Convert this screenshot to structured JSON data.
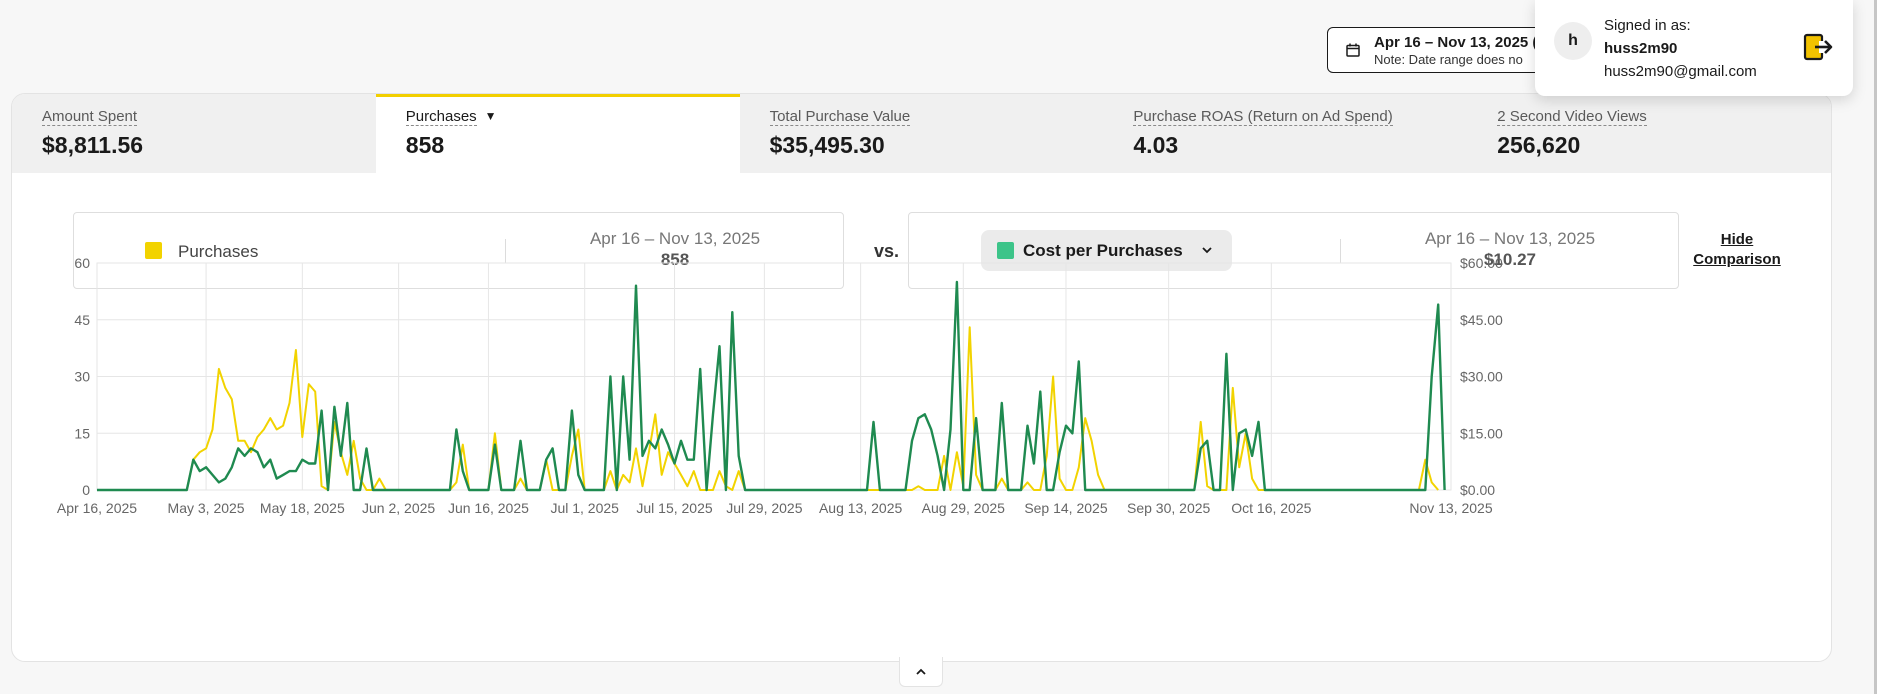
{
  "date_picker": {
    "range": "Apr 16 – Nov 13, 2025 (",
    "note": "Note: Date range does no"
  },
  "account": {
    "signed_in_label": "Signed in as:",
    "username": "huss2m90",
    "email": "huss2m90@gmail.com",
    "avatar_letter": "h"
  },
  "metrics": [
    {
      "label": "Amount Spent",
      "value": "$8,811.56"
    },
    {
      "label": "Purchases",
      "value": "858"
    },
    {
      "label": "Total Purchase Value",
      "value": "$35,495.30"
    },
    {
      "label": "Purchase ROAS (Return on Ad Spend)",
      "value": "4.03"
    },
    {
      "label": "2 Second Video Views",
      "value": "256,620"
    }
  ],
  "comparison": {
    "primary": {
      "label": "Purchases",
      "range": "Apr 16 – Nov 13, 2025",
      "value": "858",
      "color": "#f2d300"
    },
    "vs_label": "vs.",
    "secondary": {
      "label": "Cost per Purchases",
      "range": "Apr 16 – Nov 13, 2025",
      "value": "$10.27",
      "color": "#3cc489"
    },
    "hide_label": "Hide Comparison"
  },
  "chart_data": {
    "type": "line",
    "x_start": "2025-04-16",
    "x_end": "2025-11-13",
    "x_tick_labels": [
      "Apr 16, 2025",
      "May 3, 2025",
      "May 18, 2025",
      "Jun 2, 2025",
      "Jun 16, 2025",
      "Jul 1, 2025",
      "Jul 15, 2025",
      "Jul 29, 2025",
      "Aug 13, 2025",
      "Aug 29, 2025",
      "Sep 14, 2025",
      "Sep 30, 2025",
      "Oct 16, 2025",
      "Nov 13, 2025"
    ],
    "y_left": {
      "ticks": [
        "0",
        "15",
        "30",
        "45",
        "60"
      ],
      "range": [
        0,
        60
      ]
    },
    "y_right": {
      "ticks": [
        "$0.00",
        "$15.00",
        "$30.00",
        "$45.00",
        "$60.00"
      ],
      "range": [
        0,
        60
      ]
    },
    "series": [
      {
        "name": "Purchases",
        "axis": "left",
        "color": "#f2d300",
        "points": [
          [
            "2025-04-16",
            0
          ],
          [
            "2025-04-30",
            0
          ],
          [
            "2025-05-01",
            8
          ],
          [
            "2025-05-02",
            10
          ],
          [
            "2025-05-03",
            11
          ],
          [
            "2025-05-04",
            16
          ],
          [
            "2025-05-05",
            32
          ],
          [
            "2025-05-06",
            27
          ],
          [
            "2025-05-07",
            24
          ],
          [
            "2025-05-08",
            13
          ],
          [
            "2025-05-09",
            13
          ],
          [
            "2025-05-10",
            10
          ],
          [
            "2025-05-11",
            14
          ],
          [
            "2025-05-12",
            16
          ],
          [
            "2025-05-13",
            19
          ],
          [
            "2025-05-14",
            16
          ],
          [
            "2025-05-15",
            17
          ],
          [
            "2025-05-16",
            23
          ],
          [
            "2025-05-17",
            37
          ],
          [
            "2025-05-18",
            14
          ],
          [
            "2025-05-19",
            28
          ],
          [
            "2025-05-20",
            26
          ],
          [
            "2025-05-21",
            1
          ],
          [
            "2025-05-22",
            0
          ],
          [
            "2025-05-23",
            18
          ],
          [
            "2025-05-24",
            10
          ],
          [
            "2025-05-25",
            4
          ],
          [
            "2025-05-26",
            13
          ],
          [
            "2025-05-27",
            3
          ],
          [
            "2025-05-28",
            0
          ],
          [
            "2025-05-29",
            0
          ],
          [
            "2025-05-30",
            3
          ],
          [
            "2025-05-31",
            0
          ],
          [
            "2025-06-10",
            0
          ],
          [
            "2025-06-11",
            2
          ],
          [
            "2025-06-12",
            12
          ],
          [
            "2025-06-13",
            0
          ],
          [
            "2025-06-16",
            0
          ],
          [
            "2025-06-17",
            15
          ],
          [
            "2025-06-18",
            0
          ],
          [
            "2025-06-20",
            0
          ],
          [
            "2025-06-21",
            3
          ],
          [
            "2025-06-22",
            0
          ],
          [
            "2025-06-24",
            0
          ],
          [
            "2025-06-25",
            8
          ],
          [
            "2025-06-26",
            0
          ],
          [
            "2025-06-28",
            0
          ],
          [
            "2025-06-29",
            9
          ],
          [
            "2025-06-30",
            16
          ],
          [
            "2025-07-01",
            0
          ],
          [
            "2025-07-04",
            0
          ],
          [
            "2025-07-05",
            5
          ],
          [
            "2025-07-06",
            0
          ],
          [
            "2025-07-07",
            4
          ],
          [
            "2025-07-08",
            2
          ],
          [
            "2025-07-09",
            11
          ],
          [
            "2025-07-10",
            1
          ],
          [
            "2025-07-11",
            10
          ],
          [
            "2025-07-12",
            20
          ],
          [
            "2025-07-13",
            4
          ],
          [
            "2025-07-14",
            10
          ],
          [
            "2025-07-15",
            7
          ],
          [
            "2025-07-16",
            4
          ],
          [
            "2025-07-17",
            1
          ],
          [
            "2025-07-18",
            5
          ],
          [
            "2025-07-19",
            0
          ],
          [
            "2025-07-21",
            0
          ],
          [
            "2025-07-22",
            5
          ],
          [
            "2025-07-23",
            1
          ],
          [
            "2025-07-24",
            0
          ],
          [
            "2025-07-25",
            5
          ],
          [
            "2025-07-26",
            0
          ],
          [
            "2025-08-21",
            0
          ],
          [
            "2025-08-22",
            1
          ],
          [
            "2025-08-23",
            0
          ],
          [
            "2025-08-25",
            0
          ],
          [
            "2025-08-26",
            9
          ],
          [
            "2025-08-27",
            0
          ],
          [
            "2025-08-28",
            10
          ],
          [
            "2025-08-29",
            1
          ],
          [
            "2025-08-30",
            43
          ],
          [
            "2025-08-31",
            4
          ],
          [
            "2025-09-01",
            0
          ],
          [
            "2025-09-03",
            0
          ],
          [
            "2025-09-04",
            3
          ],
          [
            "2025-09-05",
            0
          ],
          [
            "2025-09-07",
            0
          ],
          [
            "2025-09-08",
            2
          ],
          [
            "2025-09-09",
            0
          ],
          [
            "2025-09-10",
            0
          ],
          [
            "2025-09-11",
            9
          ],
          [
            "2025-09-12",
            30
          ],
          [
            "2025-09-13",
            3
          ],
          [
            "2025-09-14",
            0
          ],
          [
            "2025-09-15",
            0
          ],
          [
            "2025-09-16",
            6
          ],
          [
            "2025-09-17",
            19
          ],
          [
            "2025-09-18",
            13
          ],
          [
            "2025-09-19",
            4
          ],
          [
            "2025-09-20",
            0
          ],
          [
            "2025-10-04",
            0
          ],
          [
            "2025-10-05",
            18
          ],
          [
            "2025-10-06",
            1
          ],
          [
            "2025-10-07",
            0
          ],
          [
            "2025-10-09",
            0
          ],
          [
            "2025-10-10",
            27
          ],
          [
            "2025-10-11",
            6
          ],
          [
            "2025-10-12",
            15
          ],
          [
            "2025-10-13",
            3
          ],
          [
            "2025-10-14",
            0
          ],
          [
            "2025-11-08",
            0
          ],
          [
            "2025-11-09",
            8
          ],
          [
            "2025-11-10",
            2
          ],
          [
            "2025-11-11",
            0
          ]
        ]
      },
      {
        "name": "Cost per Purchases",
        "axis": "right",
        "color": "#1f8a50",
        "points": [
          [
            "2025-04-16",
            0
          ],
          [
            "2025-04-30",
            0
          ],
          [
            "2025-05-01",
            8
          ],
          [
            "2025-05-02",
            5
          ],
          [
            "2025-05-03",
            6
          ],
          [
            "2025-05-04",
            4
          ],
          [
            "2025-05-05",
            2
          ],
          [
            "2025-05-06",
            3
          ],
          [
            "2025-05-07",
            6
          ],
          [
            "2025-05-08",
            11
          ],
          [
            "2025-05-09",
            9
          ],
          [
            "2025-05-10",
            11
          ],
          [
            "2025-05-11",
            10
          ],
          [
            "2025-05-12",
            6
          ],
          [
            "2025-05-13",
            8
          ],
          [
            "2025-05-14",
            3
          ],
          [
            "2025-05-15",
            4
          ],
          [
            "2025-05-16",
            5
          ],
          [
            "2025-05-17",
            5
          ],
          [
            "2025-05-18",
            8
          ],
          [
            "2025-05-19",
            7
          ],
          [
            "2025-05-20",
            7
          ],
          [
            "2025-05-21",
            21
          ],
          [
            "2025-05-22",
            0
          ],
          [
            "2025-05-23",
            22
          ],
          [
            "2025-05-24",
            9
          ],
          [
            "2025-05-25",
            23
          ],
          [
            "2025-05-26",
            0
          ],
          [
            "2025-05-27",
            0
          ],
          [
            "2025-05-28",
            11
          ],
          [
            "2025-05-29",
            0
          ],
          [
            "2025-06-10",
            0
          ],
          [
            "2025-06-11",
            16
          ],
          [
            "2025-06-12",
            5
          ],
          [
            "2025-06-13",
            0
          ],
          [
            "2025-06-16",
            0
          ],
          [
            "2025-06-17",
            12
          ],
          [
            "2025-06-18",
            0
          ],
          [
            "2025-06-20",
            0
          ],
          [
            "2025-06-21",
            13
          ],
          [
            "2025-06-22",
            0
          ],
          [
            "2025-06-24",
            0
          ],
          [
            "2025-06-25",
            8
          ],
          [
            "2025-06-26",
            11
          ],
          [
            "2025-06-27",
            0
          ],
          [
            "2025-06-28",
            0
          ],
          [
            "2025-06-29",
            21
          ],
          [
            "2025-06-30",
            4
          ],
          [
            "2025-07-01",
            0
          ],
          [
            "2025-07-04",
            0
          ],
          [
            "2025-07-05",
            30
          ],
          [
            "2025-07-06",
            0
          ],
          [
            "2025-07-07",
            30
          ],
          [
            "2025-07-08",
            8
          ],
          [
            "2025-07-09",
            54
          ],
          [
            "2025-07-10",
            9
          ],
          [
            "2025-07-11",
            13
          ],
          [
            "2025-07-12",
            11
          ],
          [
            "2025-07-13",
            16
          ],
          [
            "2025-07-14",
            12
          ],
          [
            "2025-07-15",
            7
          ],
          [
            "2025-07-16",
            13
          ],
          [
            "2025-07-17",
            8
          ],
          [
            "2025-07-18",
            8
          ],
          [
            "2025-07-19",
            32
          ],
          [
            "2025-07-20",
            0
          ],
          [
            "2025-07-21",
            20
          ],
          [
            "2025-07-22",
            38
          ],
          [
            "2025-07-23",
            0
          ],
          [
            "2025-07-24",
            47
          ],
          [
            "2025-07-25",
            9
          ],
          [
            "2025-07-26",
            0
          ],
          [
            "2025-08-14",
            0
          ],
          [
            "2025-08-15",
            18
          ],
          [
            "2025-08-16",
            0
          ],
          [
            "2025-08-17",
            0
          ],
          [
            "2025-08-18",
            0
          ],
          [
            "2025-08-19",
            0
          ],
          [
            "2025-08-20",
            0
          ],
          [
            "2025-08-21",
            13
          ],
          [
            "2025-08-22",
            19
          ],
          [
            "2025-08-23",
            20
          ],
          [
            "2025-08-24",
            16
          ],
          [
            "2025-08-25",
            9
          ],
          [
            "2025-08-26",
            0
          ],
          [
            "2025-08-27",
            16
          ],
          [
            "2025-08-28",
            55
          ],
          [
            "2025-08-29",
            0
          ],
          [
            "2025-08-30",
            0
          ],
          [
            "2025-08-31",
            19
          ],
          [
            "2025-09-01",
            0
          ],
          [
            "2025-09-03",
            0
          ],
          [
            "2025-09-04",
            23
          ],
          [
            "2025-09-05",
            0
          ],
          [
            "2025-09-07",
            0
          ],
          [
            "2025-09-08",
            17
          ],
          [
            "2025-09-09",
            7
          ],
          [
            "2025-09-10",
            26
          ],
          [
            "2025-09-11",
            0
          ],
          [
            "2025-09-12",
            0
          ],
          [
            "2025-09-13",
            10
          ],
          [
            "2025-09-14",
            17
          ],
          [
            "2025-09-15",
            15
          ],
          [
            "2025-09-16",
            34
          ],
          [
            "2025-09-17",
            0
          ],
          [
            "2025-10-04",
            0
          ],
          [
            "2025-10-05",
            11
          ],
          [
            "2025-10-06",
            13
          ],
          [
            "2025-10-07",
            0
          ],
          [
            "2025-10-08",
            0
          ],
          [
            "2025-10-09",
            36
          ],
          [
            "2025-10-10",
            0
          ],
          [
            "2025-10-11",
            15
          ],
          [
            "2025-10-12",
            16
          ],
          [
            "2025-10-13",
            9
          ],
          [
            "2025-10-14",
            18
          ],
          [
            "2025-10-15",
            0
          ],
          [
            "2025-11-09",
            0
          ],
          [
            "2025-11-10",
            30
          ],
          [
            "2025-11-11",
            49
          ],
          [
            "2025-11-12",
            0
          ]
        ]
      }
    ],
    "grid": true
  },
  "icons": {
    "calendar": "calendar-icon",
    "logout": "logout-icon",
    "caret": "caret-down-icon",
    "chevron": "chevron-down-icon",
    "collapse": "chevron-up-icon"
  }
}
